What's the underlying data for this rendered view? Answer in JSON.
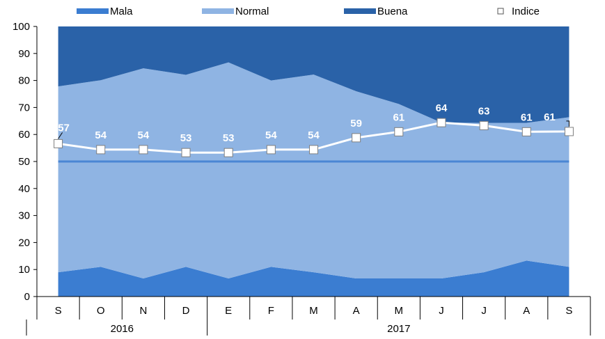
{
  "chart_data": {
    "type": "area",
    "categories": [
      "S",
      "O",
      "N",
      "D",
      "E",
      "F",
      "M",
      "A",
      "M",
      "J",
      "J",
      "A",
      "S"
    ],
    "year_groups": [
      {
        "label": "2016",
        "start": 0,
        "end": 3
      },
      {
        "label": "2017",
        "start": 4,
        "end": 12
      }
    ],
    "ylim": [
      0,
      100
    ],
    "yticks": [
      0,
      10,
      20,
      30,
      40,
      50,
      60,
      70,
      80,
      90,
      100
    ],
    "reference_line": 50,
    "series": [
      {
        "name": "Mala",
        "values": [
          9,
          11,
          6.7,
          11,
          6.7,
          11,
          9,
          6.7,
          6.7,
          6.7,
          9,
          13.3,
          11
        ]
      },
      {
        "name": "Normal",
        "values": [
          68.8,
          69.1,
          77.8,
          71.1,
          80,
          69,
          73.2,
          69.3,
          64.6,
          57.7,
          55.3,
          51,
          55.4
        ]
      },
      {
        "name": "Buena",
        "values": [
          22.2,
          19.9,
          15.5,
          17.9,
          13.3,
          20,
          17.8,
          24,
          28.7,
          35.6,
          35.7,
          35.7,
          33.6
        ]
      }
    ],
    "index_series": {
      "name": "Indice",
      "values": [
        56.6,
        54.4,
        54.4,
        53.3,
        53.3,
        54.4,
        54.4,
        58.8,
        61,
        64.4,
        63.3,
        61,
        61.1
      ],
      "labels": [
        "57",
        "54",
        "54",
        "53",
        "53",
        "54",
        "54",
        "59",
        "61",
        "64",
        "63",
        "61",
        "61"
      ]
    },
    "colors": {
      "Mala": "#3b7dd1",
      "Normal": "#8fb4e3",
      "Buena": "#2a62a8",
      "reference_line": "#4a86d4",
      "index_line": "#ffffff",
      "marker_fill": "#ffffff",
      "marker_stroke": "#7f7f7f"
    },
    "legend": {
      "position": "top",
      "items": [
        {
          "label": "Mala",
          "kind": "area",
          "series": "Mala"
        },
        {
          "label": "Normal",
          "kind": "area",
          "series": "Normal"
        },
        {
          "label": "Buena",
          "kind": "area",
          "series": "Buena"
        },
        {
          "label": "Indice",
          "kind": "marker",
          "series": "Indice"
        }
      ]
    },
    "grid": false
  }
}
